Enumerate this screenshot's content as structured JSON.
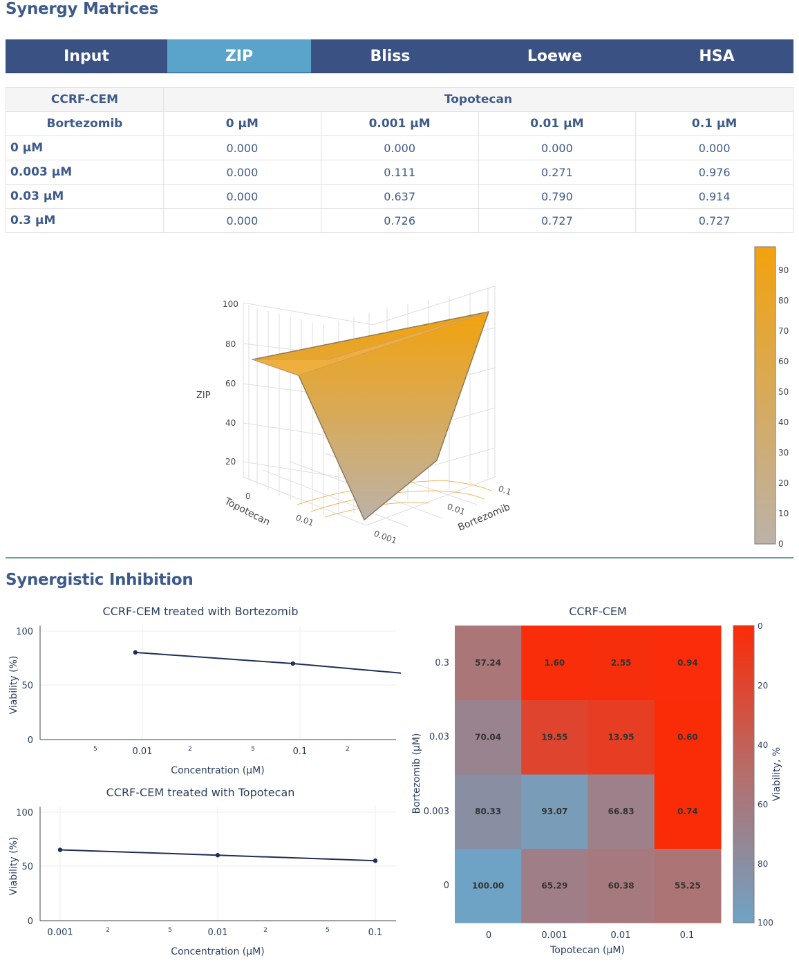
{
  "synergy_matrices": {
    "title": "Synergy Matrices",
    "tabs": [
      "Input",
      "ZIP",
      "Bliss",
      "Loewe",
      "HSA"
    ],
    "active_tab": "ZIP",
    "table": {
      "corner": "CCRF-CEM",
      "col_drug": "Topotecan",
      "row_drug": "Bortezomib",
      "col_concs": [
        "0 μM",
        "0.001 μM",
        "0.01 μM",
        "0.1 μM"
      ],
      "rows": [
        {
          "label": "0 μM",
          "values": [
            "0.000",
            "0.000",
            "0.000",
            "0.000"
          ]
        },
        {
          "label": "0.003 μM",
          "values": [
            "0.000",
            "0.111",
            "0.271",
            "0.976"
          ]
        },
        {
          "label": "0.03 μM",
          "values": [
            "0.000",
            "0.637",
            "0.790",
            "0.914"
          ]
        },
        {
          "label": "0.3 μM",
          "values": [
            "0.000",
            "0.726",
            "0.727",
            "0.727"
          ]
        }
      ]
    },
    "surface_plot": {
      "z_label": "ZIP",
      "z_ticks": [
        "20",
        "40",
        "60",
        "80",
        "100"
      ],
      "x_label": "Topotecan",
      "y_label": "Bortezomib",
      "x_ticks": [
        "0.01",
        "0.001"
      ],
      "y_ticks": [
        "0.01",
        "0.001"
      ],
      "x_tick_0": "0",
      "y_tick_0": "0.1",
      "colorbar_ticks": [
        "0",
        "10",
        "20",
        "30",
        "40",
        "50",
        "60",
        "70",
        "80",
        "90"
      ],
      "colors": {
        "low": "#bcb2a8",
        "high": "#f2a20d"
      }
    }
  },
  "synergistic_inhibition": {
    "title": "Synergistic Inhibition",
    "line_charts": [
      {
        "title": "CCRF-CEM treated with Bortezomib",
        "xlabel": "Concentration (μM)",
        "ylabel": "Viability (%)",
        "y_ticks": [
          "0",
          "50",
          "100"
        ],
        "x_major_ticks": [
          "0.01",
          "0.1"
        ],
        "x_minor_ticks": [
          "5",
          "2",
          "5",
          "2"
        ]
      },
      {
        "title": "CCRF-CEM treated with Topotecan",
        "xlabel": "Concentration (μM)",
        "ylabel": "Viability (%)",
        "y_ticks": [
          "0",
          "50",
          "100"
        ],
        "x_major_ticks": [
          "0.001",
          "0.01",
          "0.1"
        ],
        "x_minor_ticks": [
          "2",
          "5",
          "2",
          "5"
        ]
      }
    ],
    "heatmap": {
      "title": "CCRF-CEM",
      "xlabel": "Topotecan (μM)",
      "ylabel": "Bortezomib (μM)",
      "x_ticks": [
        "0",
        "0.001",
        "0.01",
        "0.1"
      ],
      "y_ticks": [
        "0",
        "0.003",
        "0.03",
        "0.3"
      ],
      "colorbar_label": "Viability, %",
      "colorbar_ticks": [
        "0",
        "20",
        "40",
        "60",
        "80",
        "100"
      ],
      "cell_labels": [
        [
          "100.00",
          "65.29",
          "60.38",
          "55.25"
        ],
        [
          "80.33",
          "93.07",
          "66.83",
          "0.74"
        ],
        [
          "70.04",
          "19.55",
          "13.95",
          "0.60"
        ],
        [
          "57.24",
          "1.60",
          "2.55",
          "0.94"
        ]
      ],
      "colors": {
        "high_viability": "#6fa3c6",
        "low_viability": "#fb2b07"
      }
    }
  },
  "chart_data": [
    {
      "type": "line",
      "title": "CCRF-CEM treated with Bortezomib",
      "xlabel": "Concentration (μM)",
      "ylabel": "Viability (%)",
      "x": [
        0.003,
        0.03,
        0.3
      ],
      "values": [
        80.33,
        70.04,
        57.24
      ],
      "ylim": [
        0,
        100
      ],
      "log_x": true
    },
    {
      "type": "line",
      "title": "CCRF-CEM treated with Topotecan",
      "xlabel": "Concentration (μM)",
      "ylabel": "Viability (%)",
      "x": [
        0.001,
        0.01,
        0.1
      ],
      "values": [
        65.29,
        60.38,
        55.25
      ],
      "ylim": [
        0,
        100
      ],
      "log_x": true
    },
    {
      "type": "heatmap",
      "title": "CCRF-CEM",
      "xlabel": "Topotecan (μM)",
      "ylabel": "Bortezomib (μM)",
      "x": [
        "0",
        "0.001",
        "0.01",
        "0.1"
      ],
      "y": [
        "0",
        "0.003",
        "0.03",
        "0.3"
      ],
      "z": [
        [
          100.0,
          65.29,
          60.38,
          55.25
        ],
        [
          80.33,
          93.07,
          66.83,
          0.74
        ],
        [
          70.04,
          19.55,
          13.95,
          0.6
        ],
        [
          57.24,
          1.6,
          2.55,
          0.94
        ]
      ],
      "zlim": [
        0,
        100
      ],
      "colorbar_label": "Viability, %"
    }
  ]
}
